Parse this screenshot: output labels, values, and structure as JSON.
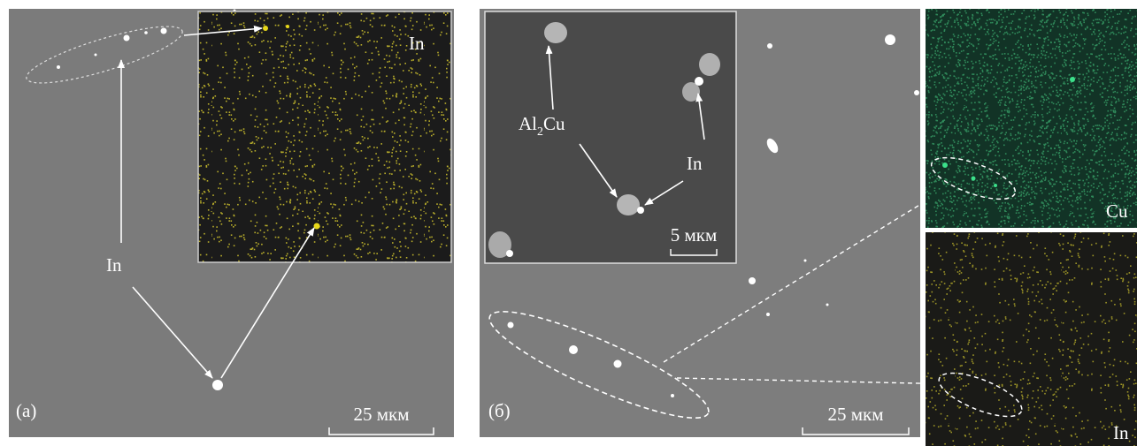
{
  "panel_a": {
    "label": "(а)",
    "scale_bar": "25 мкм",
    "annotation": "In",
    "inset_label": "In"
  },
  "panel_b": {
    "label": "(б)",
    "scale_bar": "25 мкм",
    "inset": {
      "formula": {
        "base": "Al",
        "subscript": "2",
        "rest": "Cu"
      },
      "annotation": "In",
      "scale_bar": "5 мкм"
    },
    "map_cu_label": "Cu",
    "map_in_label": "In"
  }
}
